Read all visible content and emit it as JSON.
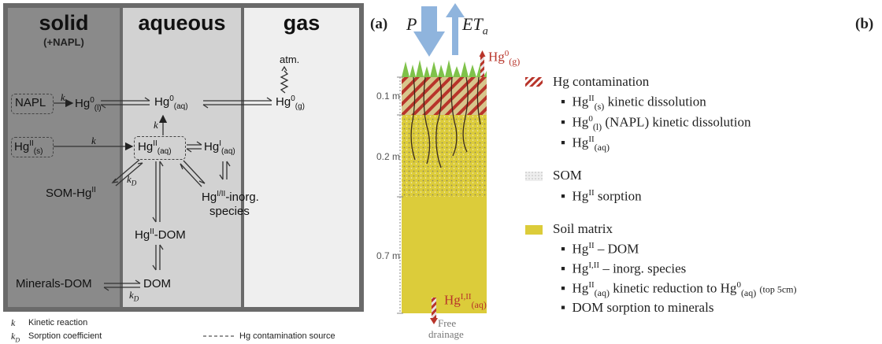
{
  "left": {
    "phases": {
      "solid": "solid",
      "solid_sub": "(+NAPL)",
      "aqueous": "aqueous",
      "gas": "gas"
    },
    "atm": "atm.",
    "napl": "NAPL",
    "k": "k",
    "kd": "k",
    "kd_sub": "D",
    "legend": {
      "k_sym": "k",
      "k_text": "Kinetic reaction",
      "kd_sym": "k",
      "kd_sub": "D",
      "kd_text": "Sorption coefficient",
      "dash_text": "Hg contamination source"
    },
    "som_hg": "SOM-Hg",
    "inorg_line2": "species",
    "minerals_dom": "Minerals-DOM",
    "dom": "DOM",
    "hg": "Hg"
  },
  "right": {
    "label_a": "(a)",
    "label_b": "(b)",
    "P": "P",
    "ET": "ET",
    "ET_sub": "a",
    "depths": [
      "0.1 m",
      "0.2 m",
      "0.7 m"
    ],
    "free_drainage_1": "Free",
    "free_drainage_2": "drainage",
    "legend": {
      "contamination_title": "Hg contamination",
      "som_title": "SOM",
      "soil_title": "Soil matrix",
      "item_dissolution": " kinetic dissolution",
      "item_napl": " (NAPL) kinetic dissolution",
      "item_sorption": " sorption",
      "item_dom": " – DOM",
      "item_inorg": " – inorg. species",
      "item_reduction": " kinetic reduction to Hg",
      "item_top": "(top 5cm)",
      "item_dom_sorption": "DOM sorption to minerals"
    }
  },
  "colors": {
    "solid_bg": "#8a8a8a",
    "aqueous_bg": "#d2d2d2",
    "gas_bg": "#efefef",
    "frame": "#6a6a6a",
    "soil": "#dccc3a",
    "som": "#cfc48a",
    "contam": "#b8342a",
    "arrow_blue": "#8fb4dd",
    "grass": "#7fc24a",
    "hg_red": "#b8342a"
  }
}
